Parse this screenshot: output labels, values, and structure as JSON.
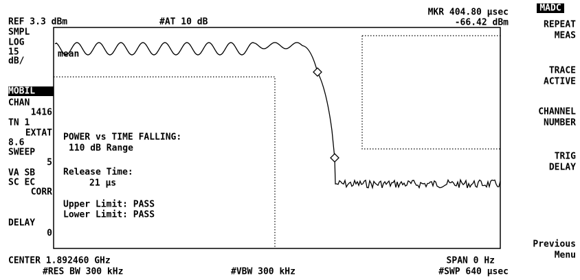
{
  "header": {
    "ref": "REF 3.3 dBm",
    "atten": "#AT 10 dB",
    "marker_time": "MKR 404.80 µsec",
    "marker_level": "-66.42 dBm",
    "menu_title": "MADC"
  },
  "left_annotations": [
    "SMPL",
    "LOG",
    "15",
    "dB/",
    "MOBIL",
    "CHAN",
    "1416",
    "TN 1",
    "EXTAT",
    "8.6",
    "SWEEP",
    "5",
    "VA SB",
    "SC EC",
    "CORR",
    "DELAY",
    "0"
  ],
  "softkeys": [
    [
      "REPEAT",
      "MEAS"
    ],
    [
      "TRACE",
      "ACTIVE"
    ],
    [
      "CHANNEL",
      "NUMBER"
    ],
    [
      "TRIG",
      "DELAY"
    ],
    [
      "Previous",
      "Menu"
    ]
  ],
  "trace_label": "mean",
  "results": {
    "title": "POWER vs TIME FALLING:",
    "range": "110 dB Range",
    "release_label": "Release Time:",
    "release_value": "21 µs",
    "upper": "Upper Limit: PASS",
    "lower": "Lower Limit: PASS"
  },
  "footer": {
    "center": "CENTER 1.892460 GHz",
    "span": "SPAN 0 Hz",
    "rbw": "#RES BW 300 kHz",
    "vbw": "#VBW 300 kHz",
    "sweep": "#SWP 640 µsec"
  }
}
